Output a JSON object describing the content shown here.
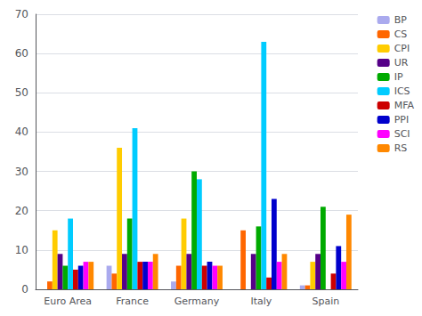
{
  "chart_data": {
    "type": "bar",
    "categories": [
      "Euro Area",
      "France",
      "Germany",
      "Italy",
      "Spain"
    ],
    "series": [
      {
        "name": "BP",
        "color": "#aaaaee",
        "values": [
          0,
          6,
          2,
          0,
          1
        ]
      },
      {
        "name": "CS",
        "color": "#ff6600",
        "values": [
          2,
          4,
          6,
          15,
          1
        ]
      },
      {
        "name": "CPI",
        "color": "#ffcc00",
        "values": [
          15,
          36,
          18,
          0,
          7
        ]
      },
      {
        "name": "UR",
        "color": "#550088",
        "values": [
          9,
          9,
          9,
          9,
          9
        ]
      },
      {
        "name": "IP",
        "color": "#00aa00",
        "values": [
          6,
          18,
          30,
          16,
          21
        ]
      },
      {
        "name": "ICS",
        "color": "#00ccff",
        "values": [
          18,
          41,
          28,
          63,
          0
        ]
      },
      {
        "name": "MFA",
        "color": "#cc0000",
        "values": [
          5,
          7,
          6,
          3,
          4
        ]
      },
      {
        "name": "PPI",
        "color": "#0000cc",
        "values": [
          6,
          7,
          7,
          23,
          11
        ]
      },
      {
        "name": "SCI",
        "color": "#ff00ff",
        "values": [
          7,
          7,
          6,
          7,
          7
        ]
      },
      {
        "name": "RS",
        "color": "#ff8800",
        "values": [
          7,
          9,
          6,
          9,
          19
        ]
      }
    ],
    "ylim": [
      0,
      70
    ],
    "yticks": [
      0,
      10,
      20,
      30,
      40,
      50,
      60,
      70
    ],
    "grid": true,
    "legend": "upper right"
  }
}
